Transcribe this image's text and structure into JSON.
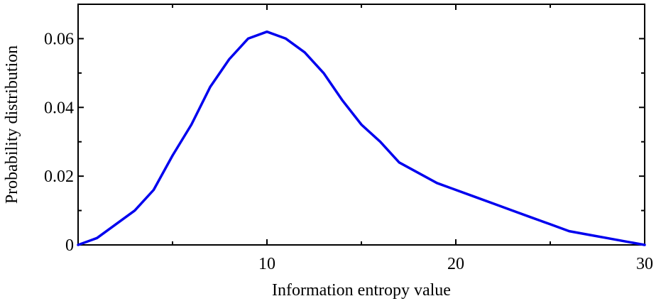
{
  "chart_data": {
    "type": "line",
    "title": "",
    "xlabel": "Information entropy value",
    "ylabel": "Probability distribution",
    "xlim": [
      0,
      30
    ],
    "ylim": [
      0,
      0.07
    ],
    "grid": false,
    "line_color": "#0000ee",
    "x_ticks": [
      {
        "value": 10,
        "label": "10"
      },
      {
        "value": 20,
        "label": "20"
      },
      {
        "value": 30,
        "label": "30"
      }
    ],
    "x_minor_ticks": [
      5,
      15,
      25
    ],
    "y_ticks": [
      {
        "value": 0,
        "label": "0"
      },
      {
        "value": 0.02,
        "label": "0.02"
      },
      {
        "value": 0.04,
        "label": "0.04"
      },
      {
        "value": 0.06,
        "label": "0.06"
      }
    ],
    "y_minor_ticks": [
      0.01,
      0.03,
      0.05
    ],
    "series": [
      {
        "x": [
          0,
          1,
          2,
          3,
          4,
          5,
          6,
          7,
          8,
          9,
          10,
          11,
          12,
          13,
          14,
          15,
          16,
          17,
          18,
          19,
          20,
          21,
          22,
          23,
          24,
          25,
          26,
          27,
          28,
          29,
          30
        ],
        "y": [
          0,
          0.002,
          0.006,
          0.01,
          0.016,
          0.026,
          0.035,
          0.046,
          0.054,
          0.06,
          0.062,
          0.06,
          0.056,
          0.05,
          0.042,
          0.035,
          0.03,
          0.024,
          0.021,
          0.018,
          0.016,
          0.014,
          0.012,
          0.01,
          0.008,
          0.006,
          0.004,
          0.003,
          0.002,
          0.001,
          0
        ]
      }
    ]
  }
}
